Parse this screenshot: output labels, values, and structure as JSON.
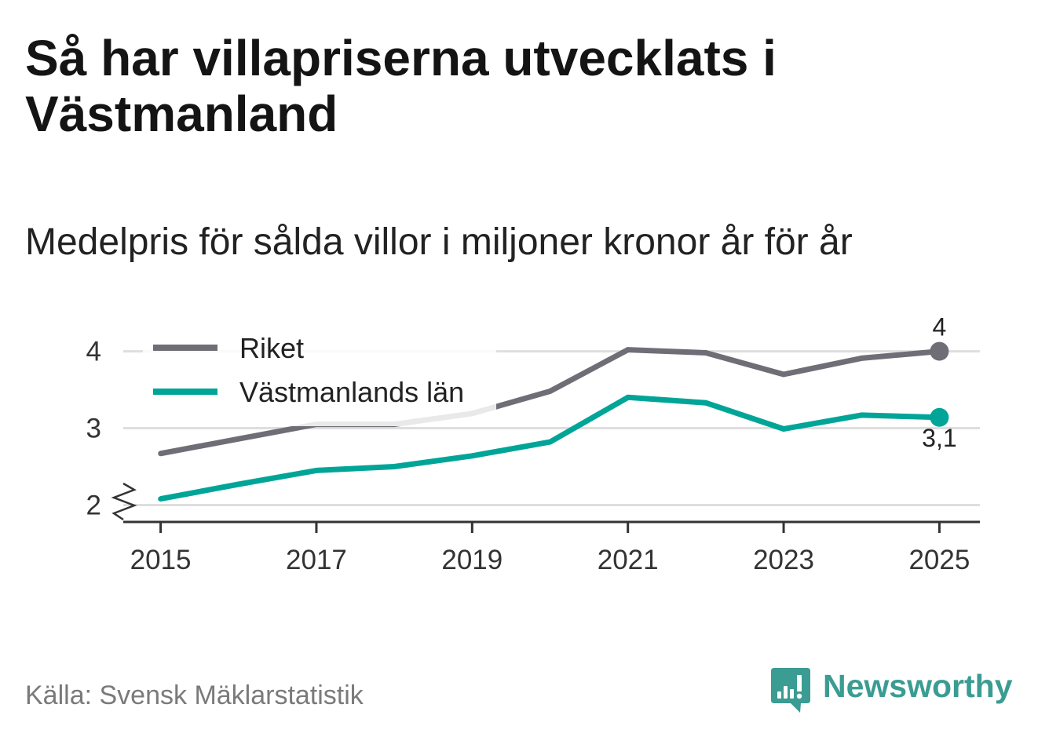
{
  "colors": {
    "title": "#141414",
    "text": "#222222",
    "axis": "#333333",
    "grid": "#dedede",
    "source": "#7a7a7a",
    "brand": "#3a9c92"
  },
  "chart_data": {
    "type": "line",
    "title": "Så har villapriserna utvecklats i Västmanland",
    "subtitle": "Medelpris för sålda villor i miljoner kronor år för år",
    "x": [
      2015,
      2016,
      2017,
      2018,
      2019,
      2020,
      2021,
      2022,
      2023,
      2024,
      2025
    ],
    "x_ticks": [
      2015,
      2017,
      2019,
      2021,
      2023,
      2025
    ],
    "xlim": [
      2014.5,
      2025.5
    ],
    "y_ticks": [
      2,
      3,
      4
    ],
    "ylim": [
      1.78,
      4.2
    ],
    "y_axis_break": true,
    "grid": true,
    "series": [
      {
        "name": "Riket",
        "color": "#6f6e76",
        "values": [
          2.67,
          2.86,
          3.05,
          3.05,
          3.19,
          3.48,
          4.02,
          3.98,
          3.7,
          3.91,
          4.0
        ],
        "end_label": "4"
      },
      {
        "name": "Västmanlands län",
        "color": "#00a598",
        "values": [
          2.08,
          2.27,
          2.45,
          2.5,
          2.64,
          2.82,
          3.4,
          3.33,
          2.99,
          3.17,
          3.14
        ],
        "end_label": "3,1"
      }
    ]
  },
  "footer": {
    "source": "Källa: Svensk Mäklarstatistik"
  },
  "brand": {
    "name": "Newsworthy",
    "icon": "newsworthy-logo-icon"
  }
}
